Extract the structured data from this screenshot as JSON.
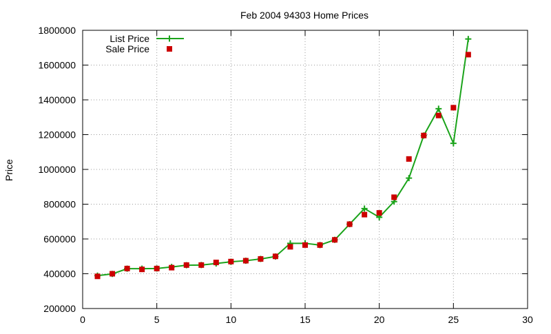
{
  "chart_data": {
    "type": "line",
    "title": "Feb 2004 94303 Home Prices",
    "xlabel": "",
    "ylabel": "Price",
    "xlim": [
      0,
      30
    ],
    "ylim": [
      200000,
      1800000
    ],
    "x_ticks": [
      "0",
      "5",
      "10",
      "15",
      "20",
      "25",
      "30"
    ],
    "y_ticks": [
      "200000",
      "400000",
      "600000",
      "800000",
      "1000000",
      "1200000",
      "1400000",
      "1600000",
      "1800000"
    ],
    "grid": true,
    "legend_position": "top-left",
    "series": [
      {
        "name": "List Price",
        "marker": "plus",
        "line": true,
        "color": "#1aa31a",
        "x": [
          1,
          2,
          3,
          4,
          5,
          6,
          7,
          8,
          9,
          10,
          11,
          12,
          13,
          14,
          15,
          16,
          17,
          18,
          19,
          20,
          21,
          22,
          23,
          24,
          25,
          26
        ],
        "y": [
          389000,
          399000,
          429000,
          429000,
          430000,
          439000,
          449000,
          450000,
          459000,
          469000,
          475000,
          485000,
          499000,
          575000,
          575000,
          565000,
          595000,
          685000,
          775000,
          725000,
          815000,
          950000,
          1195000,
          1349000,
          1150000,
          1750000
        ]
      },
      {
        "name": "Sale Price",
        "marker": "square",
        "line": false,
        "color": "#cc0000",
        "x": [
          1,
          2,
          3,
          4,
          5,
          6,
          7,
          8,
          9,
          10,
          11,
          12,
          13,
          14,
          15,
          16,
          17,
          18,
          19,
          20,
          21,
          22,
          23,
          24,
          25,
          26
        ],
        "y": [
          385000,
          400000,
          430000,
          425000,
          430000,
          435000,
          450000,
          450000,
          465000,
          470000,
          475000,
          485000,
          500000,
          555000,
          565000,
          565000,
          595000,
          685000,
          740000,
          750000,
          840000,
          1060000,
          1195000,
          1310000,
          1355000,
          1660000
        ]
      }
    ]
  }
}
